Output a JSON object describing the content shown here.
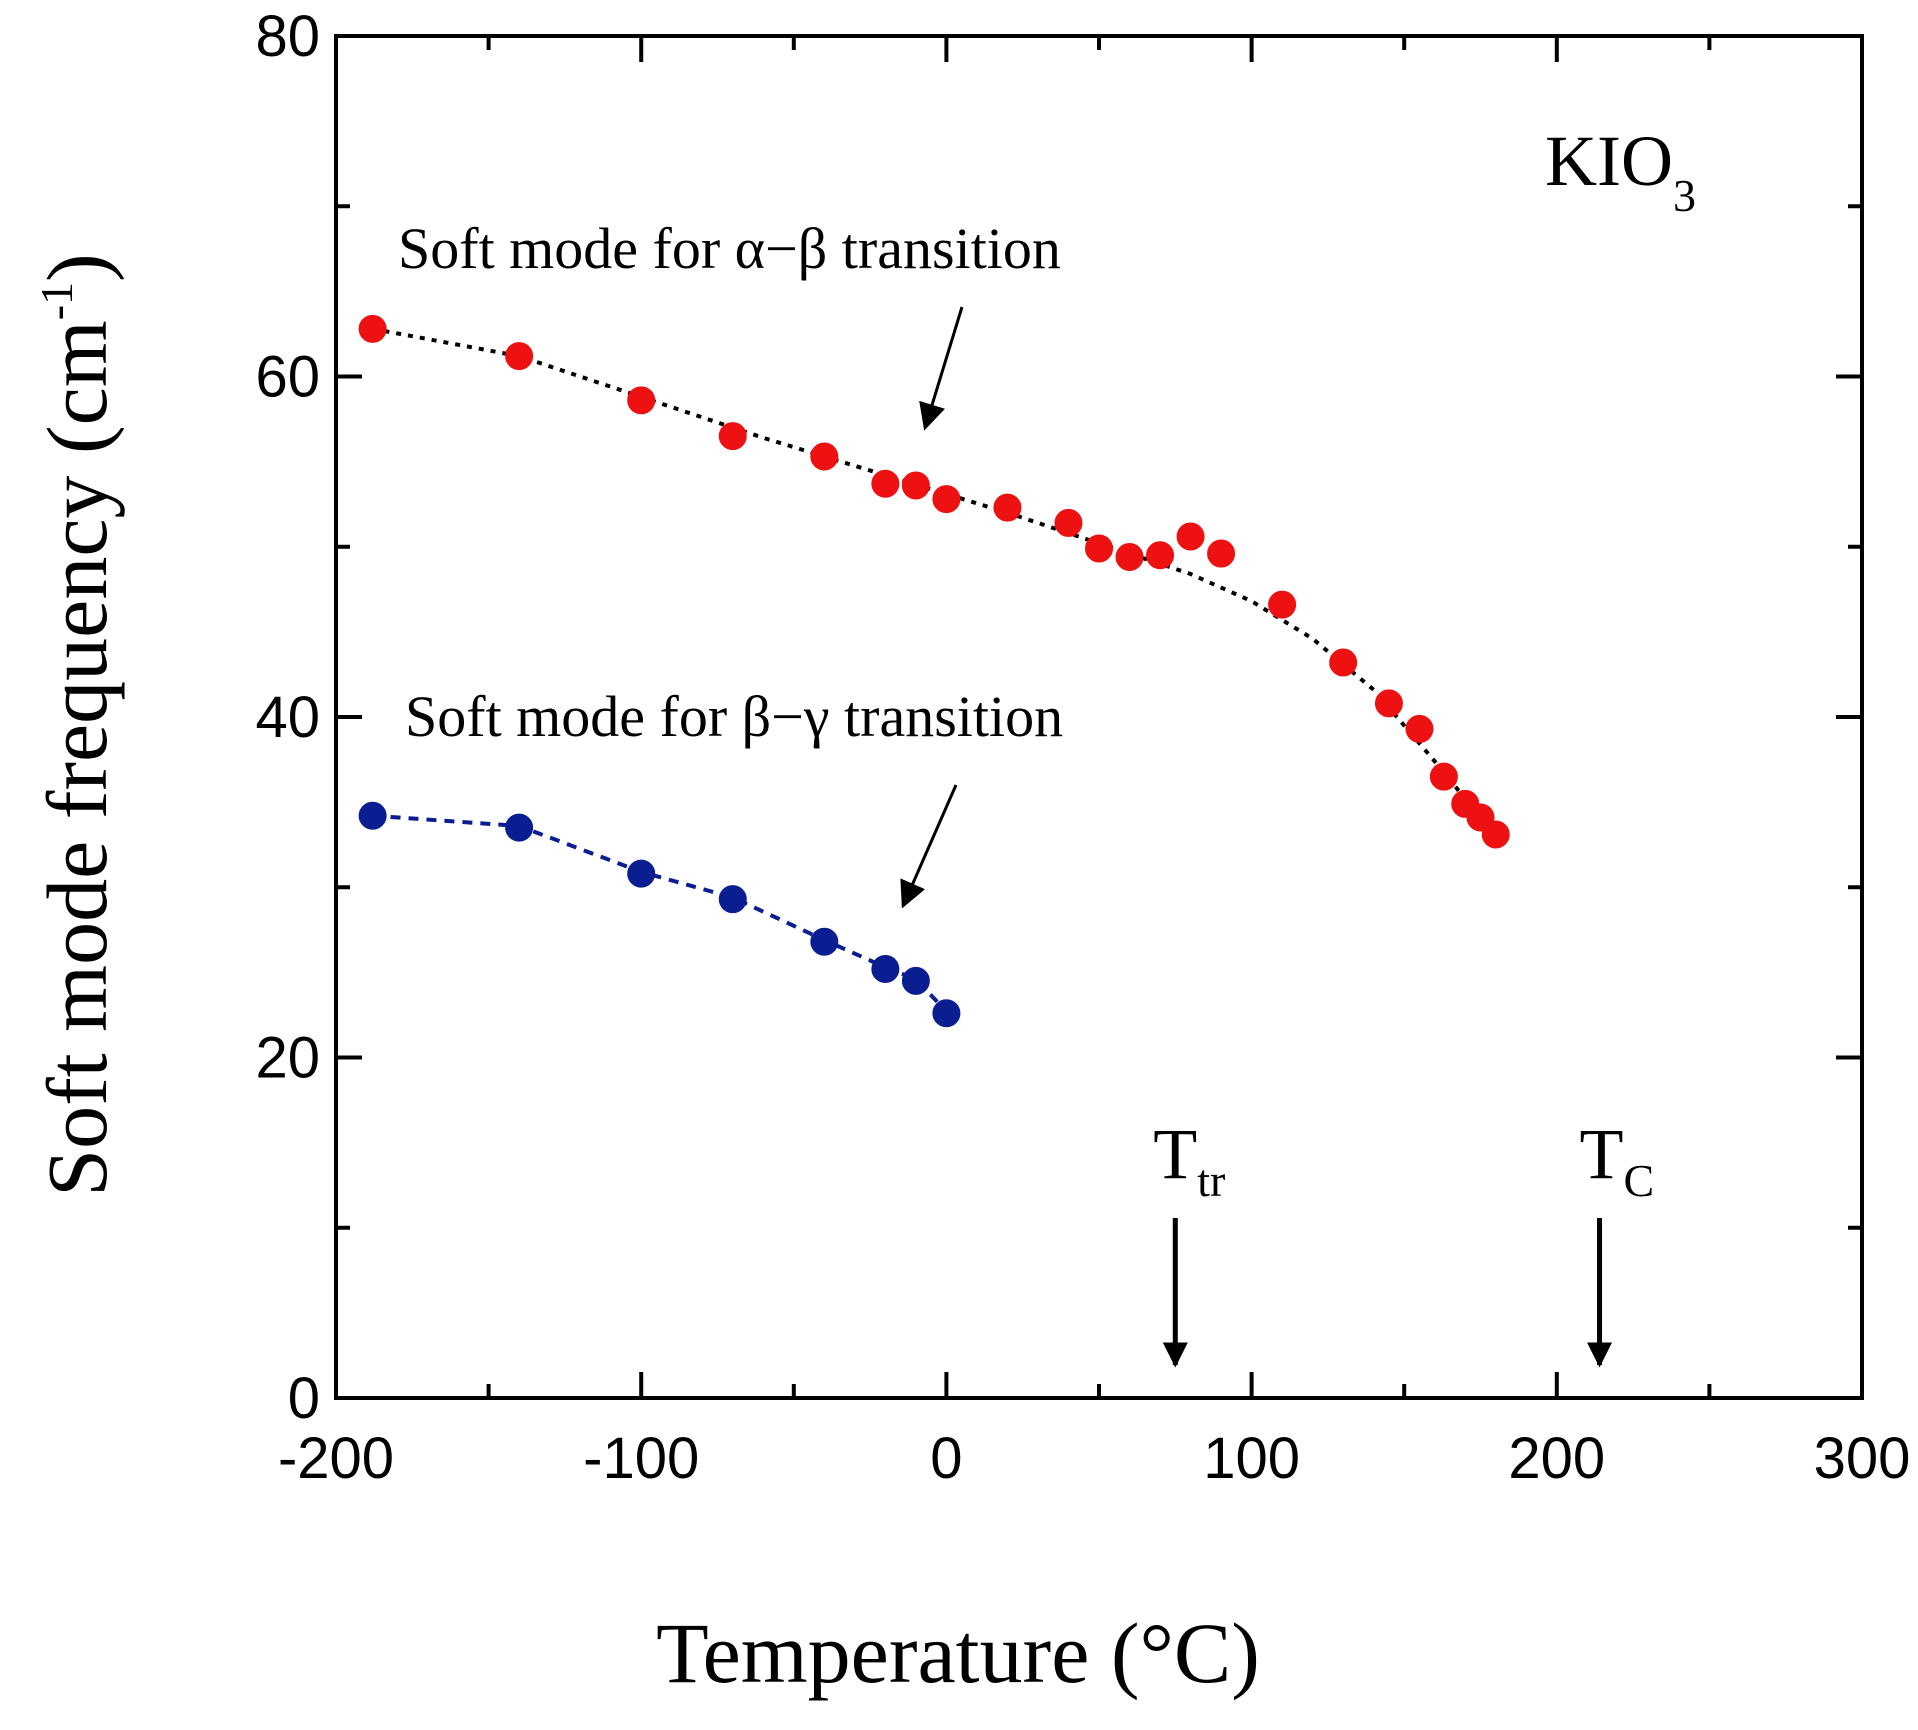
{
  "chart_data": {
    "type": "scatter",
    "title": "",
    "xlabel": "Temperature (°C)",
    "ylabel_main": "Soft mode frequency (cm",
    "ylabel_sup": "-1",
    "ylabel_close": ")",
    "xlim": [
      -200,
      300
    ],
    "ylim": [
      0,
      80
    ],
    "x_ticks": [
      -200,
      -100,
      0,
      100,
      200,
      300
    ],
    "x_minor_step": 50,
    "y_ticks": [
      0,
      20,
      40,
      60,
      80
    ],
    "y_minor_step": 10,
    "x_tick_labels": [
      "-200",
      "-100",
      "0",
      "100",
      "200",
      "300"
    ],
    "y_tick_labels": [
      "0",
      "20",
      "40",
      "60",
      "80"
    ],
    "grid": false,
    "series": [
      {
        "name": "Soft mode for α−β transition",
        "color": "#ee1111",
        "x": [
          -188,
          -140,
          -100,
          -70,
          -40,
          -20,
          -10,
          0,
          20,
          40,
          50,
          60,
          70,
          80,
          90,
          110,
          130,
          145,
          155,
          163,
          170,
          175,
          180
        ],
        "y": [
          62.8,
          61.2,
          58.6,
          56.5,
          55.3,
          53.7,
          53.6,
          52.8,
          52.3,
          51.4,
          49.9,
          49.4,
          49.5,
          50.6,
          49.6,
          46.6,
          43.2,
          40.8,
          39.3,
          36.5,
          34.9,
          34.1,
          33.1
        ],
        "fit_x": [
          -188,
          -140,
          -100,
          -60,
          -20,
          0,
          20,
          40,
          60,
          80,
          100,
          120,
          140,
          160,
          170,
          180
        ],
        "fit_y": [
          62.8,
          61.2,
          58.8,
          56.4,
          54.2,
          53.1,
          52.0,
          50.8,
          49.6,
          48.4,
          46.8,
          44.6,
          41.6,
          37.4,
          35.2,
          32.9
        ]
      },
      {
        "name": "Soft mode for β−γ transition",
        "color": "#0b1e91",
        "x": [
          -188,
          -140,
          -100,
          -70,
          -40,
          -20,
          -10,
          0
        ],
        "y": [
          34.2,
          33.5,
          30.8,
          29.3,
          26.8,
          25.2,
          24.5,
          22.6
        ],
        "fit_x": [
          -188,
          -140,
          -100,
          -70,
          -40,
          -20,
          -10,
          0
        ],
        "fit_y": [
          34.2,
          33.6,
          30.9,
          29.4,
          26.9,
          25.3,
          24.6,
          22.7
        ]
      }
    ],
    "annotations": {
      "compound_main": "KIO",
      "compound_sub": "3",
      "alpha_beta_label": "Soft mode for α−β transition",
      "beta_gamma_label": "Soft mode for β−γ transition",
      "t_tr_main": "T",
      "t_tr_sub": "tr",
      "t_tr_x": 75,
      "t_c_main": "T",
      "t_c_sub": "C",
      "t_c_x": 214
    }
  }
}
